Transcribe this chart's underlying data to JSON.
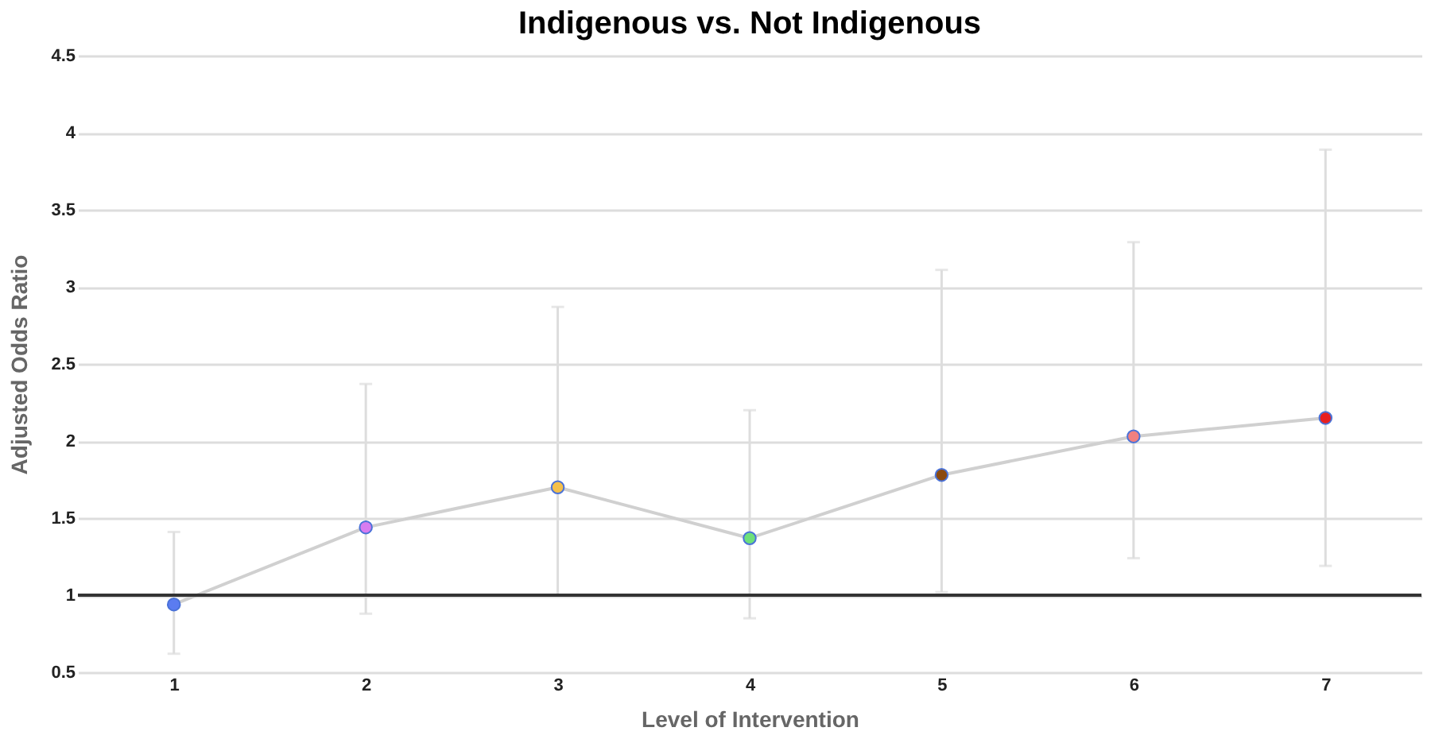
{
  "chart_data": {
    "type": "line",
    "title": "Indigenous vs. Not Indigenous",
    "xlabel": "Level of Intervention",
    "ylabel": "Adjusted Odds Ratio",
    "categories": [
      "1",
      "2",
      "3",
      "4",
      "5",
      "6",
      "7"
    ],
    "series": [
      {
        "color": "#d0d0d0",
        "colors": [
          "#5b7cf0",
          "#d77cf0",
          "#f5c04a",
          "#6ee07a",
          "#8b4a10",
          "#f08080",
          "#e82020"
        ],
        "values": [
          0.94,
          1.44,
          1.7,
          1.37,
          1.78,
          2.03,
          2.15
        ],
        "errors": [
          [
            0.62,
            1.41
          ],
          [
            0.88,
            2.37
          ],
          [
            1.0,
            2.87
          ],
          [
            0.85,
            2.2
          ],
          [
            1.02,
            3.11
          ],
          [
            1.24,
            3.29
          ],
          [
            1.19,
            3.89
          ]
        ]
      }
    ],
    "ylim": [
      0.5,
      4.5
    ],
    "yticks": [
      0.5,
      1,
      1.5,
      2,
      2.5,
      3,
      3.5,
      4,
      4.5
    ],
    "grid": "y",
    "marker": "circle",
    "line_style": "solid",
    "ref_lines": [
      {
        "axis": "y",
        "value": 1,
        "color": "#333333"
      }
    ]
  }
}
